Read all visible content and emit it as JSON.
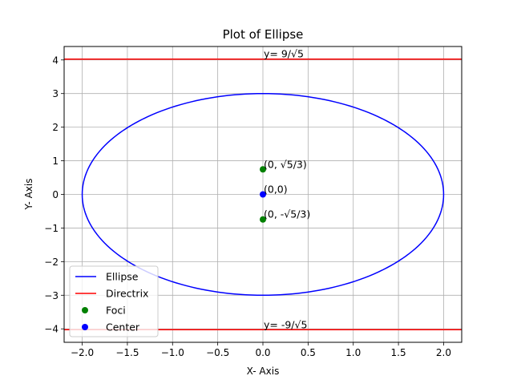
{
  "chart_data": {
    "type": "line",
    "title": "Plot of Ellipse",
    "xlabel": "X- Axis",
    "ylabel": "Y- Axis",
    "xlim": [
      -2.2,
      2.2
    ],
    "ylim": [
      -4.4,
      4.4
    ],
    "grid": true,
    "xticks": [
      -2.0,
      -1.5,
      -1.0,
      -0.5,
      0.0,
      0.5,
      1.0,
      1.5,
      2.0
    ],
    "xtick_labels": [
      "−2.0",
      "−1.5",
      "−1.0",
      "−0.5",
      "0.0",
      "0.5",
      "1.0",
      "1.5",
      "2.0"
    ],
    "yticks": [
      -4,
      -3,
      -2,
      -1,
      0,
      1,
      2,
      3,
      4
    ],
    "ytick_labels": [
      "−4",
      "−3",
      "−2",
      "−1",
      "0",
      "1",
      "2",
      "3",
      "4"
    ],
    "legend_position": "lower-left",
    "series": [
      {
        "name": "Ellipse",
        "kind": "ellipse",
        "color": "#0000ff",
        "center": [
          0,
          0
        ],
        "a": 2,
        "b": 3
      },
      {
        "name": "Directrix",
        "kind": "hlines",
        "color": "#ff0000",
        "y": [
          4.025,
          -4.025
        ]
      },
      {
        "name": "Foci",
        "kind": "points",
        "color": "#008000",
        "points": [
          [
            0,
            0.745
          ],
          [
            0,
            -0.745
          ]
        ]
      },
      {
        "name": "Center",
        "kind": "points",
        "color": "#0000ff",
        "points": [
          [
            0,
            0
          ]
        ]
      }
    ],
    "annotations": [
      {
        "text": "y= 9/√5",
        "x": 0,
        "y": 4.025
      },
      {
        "text": "y= -9/√5",
        "x": 0,
        "y": -4.025
      },
      {
        "text": "(0, √5/3)",
        "x": 0,
        "y": 0.745
      },
      {
        "text": "(0,0)",
        "x": 0,
        "y": 0
      },
      {
        "text": "(0, -√5/3)",
        "x": 0,
        "y": -0.745
      }
    ]
  }
}
